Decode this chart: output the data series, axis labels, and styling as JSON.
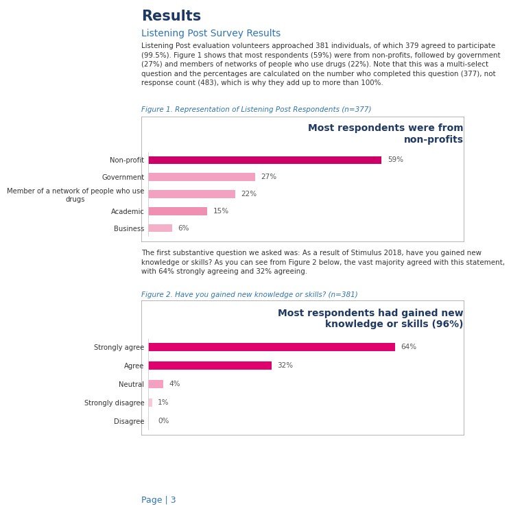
{
  "page_bg": "#ffffff",
  "title_text": "Results",
  "title_color": "#1f3864",
  "subtitle_text": "Listening Post Survey Results",
  "subtitle_color": "#2e74b5",
  "body_text1_lines": [
    "Listening Post evaluation volunteers approached 381 individuals, of which 379 agreed to participate",
    "(99.5%). Figure 1 shows that most respondents (59%) were from non-profits, followed by government",
    "(27%) and members of networks of people who use drugs (22%). Note that this was a multi-select",
    "question and the percentages are calculated on the number who completed this question (377), not",
    "response count (483), which is why they add up to more than 100%."
  ],
  "body_text2_lines": [
    "The first substantive question we asked was: As a result of Stimulus 2018, have you gained new",
    "knowledge or skills? As you can see from Figure 2 below, the vast majority agreed with this statement,",
    "with 64% strongly agreeing and 32% agreeing."
  ],
  "fig1_caption": "Figure 1. Representation of Listening Post Respondents (n=377)",
  "fig2_caption": "Figure 2. Have you gained new knowledge or skills? (n=381)",
  "fig1_title": "Most respondents were from\nnon-profits",
  "fig2_title": "Most respondents had gained new\nknowledge or skills (96%)",
  "chart_title_color": "#1f3864",
  "caption_color": "#2e74b5",
  "fig1_categories": [
    "Non-profit",
    "Government",
    "Member of a network of people who use\ndrugs",
    "Academic",
    "Business"
  ],
  "fig1_values": [
    59,
    27,
    22,
    15,
    6
  ],
  "fig1_labels": [
    "59%",
    "27%",
    "22%",
    "15%",
    "6%"
  ],
  "fig1_colors": [
    "#cc0066",
    "#f4a0c0",
    "#f4a0c0",
    "#f090b0",
    "#f4b0c8"
  ],
  "fig2_categories": [
    "Strongly agree",
    "Agree",
    "Neutral",
    "Strongly disagree",
    "Disagree"
  ],
  "fig2_values": [
    64,
    32,
    4,
    1,
    0
  ],
  "fig2_labels": [
    "64%",
    "32%",
    "4%",
    "1%",
    "0%"
  ],
  "fig2_colors": [
    "#e0006e",
    "#e0006e",
    "#f4a0c0",
    "#f8c8d8",
    "#f8c8d8"
  ],
  "bar_label_color": "#555555",
  "text_color": "#333333",
  "page_label": "Page | 3",
  "page_label_color": "#2e74b5"
}
